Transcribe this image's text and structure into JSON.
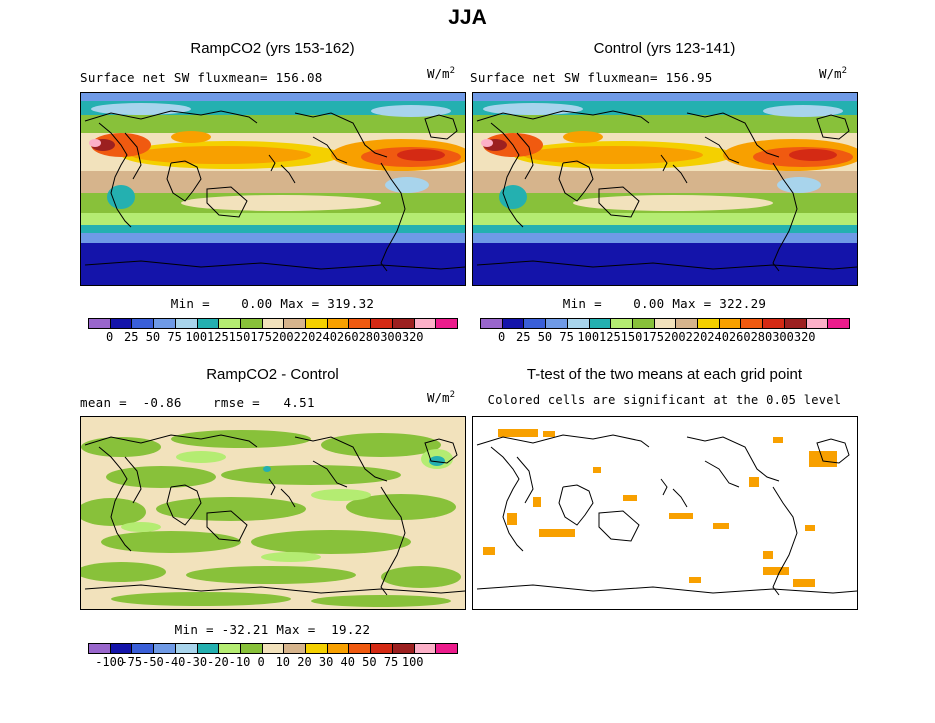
{
  "main_title": "JJA",
  "panels": {
    "ramp": {
      "title": "RampCO2 (yrs 153-162)",
      "subtitle": "Surface net SW fluxmean= 156.08",
      "units": "W/m",
      "units_sup": "2",
      "stats": "Min =    0.00 Max = 319.32"
    },
    "control": {
      "title": "Control (yrs 123-141)",
      "subtitle": "Surface net SW fluxmean= 156.95",
      "units": "W/m",
      "units_sup": "2",
      "stats": "Min =    0.00 Max = 322.29"
    },
    "diff": {
      "title": "RampCO2 - Control",
      "subtitle": "mean =  -0.86    rmse =   4.51",
      "units": "W/m",
      "units_sup": "2",
      "stats": "Min = -32.21 Max =  19.22"
    },
    "ttest": {
      "title": "T-test of the two means at each grid point",
      "subtitle": "Colored cells are significant at the 0.05 level"
    }
  },
  "colorbar_main": {
    "labels": [
      "0",
      "25",
      "50",
      "75",
      "100",
      "125",
      "150",
      "175",
      "200",
      "220",
      "240",
      "260",
      "280",
      "300",
      "320"
    ],
    "colors": [
      "#9966cc",
      "#1414aa",
      "#3a5fd8",
      "#6f9ae6",
      "#a8d4ec",
      "#24b0b0",
      "#b4ec72",
      "#88c13a",
      "#f2e2bc",
      "#d6b48c",
      "#f4d000",
      "#f8a000",
      "#f05a10",
      "#d42a14",
      "#9c2020",
      "#fcb0c8",
      "#ec1c8c"
    ]
  },
  "colorbar_diff": {
    "labels": [
      "-100",
      "-75",
      "-50",
      "-40",
      "-30",
      "-20",
      "-10",
      "0",
      "10",
      "20",
      "30",
      "40",
      "50",
      "75",
      "100"
    ],
    "colors": [
      "#9966cc",
      "#1414aa",
      "#3a5fd8",
      "#6f9ae6",
      "#a8d4ec",
      "#24b0b0",
      "#b4ec72",
      "#88c13a",
      "#f2e2bc",
      "#d6b48c",
      "#f4d000",
      "#f8a000",
      "#f05a10",
      "#d42a14",
      "#9c2020",
      "#fcb0c8",
      "#ec1c8c"
    ]
  }
}
